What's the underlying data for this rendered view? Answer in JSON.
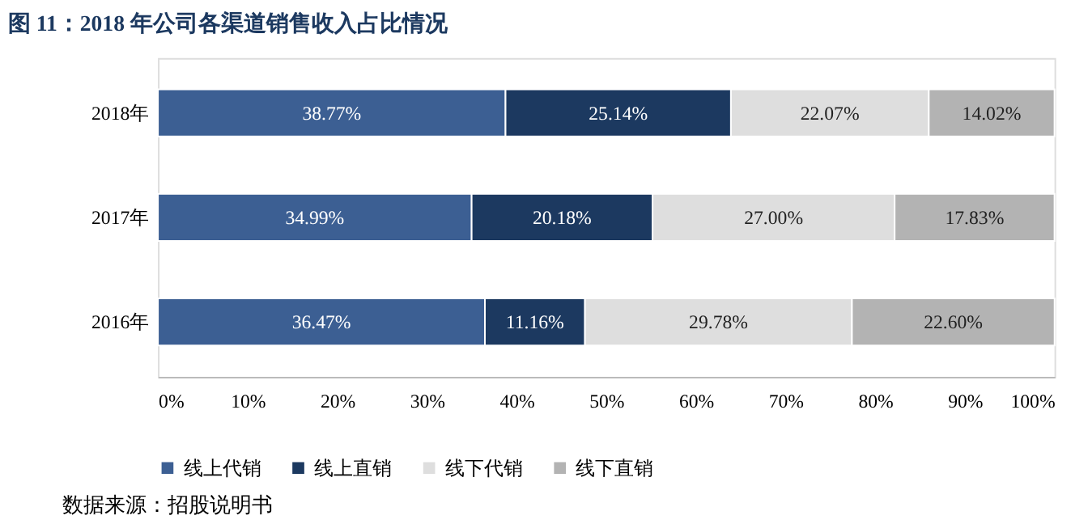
{
  "chart_data": {
    "type": "bar",
    "orientation": "horizontal",
    "stacked": true,
    "title": "图 11：2018 年公司各渠道销售收入占比情况",
    "categories": [
      "2018年",
      "2017年",
      "2016年"
    ],
    "series": [
      {
        "name": "线上代销",
        "color": "#3c5f93",
        "values": [
          38.77,
          34.99,
          36.47
        ],
        "value_labels": [
          "38.77%",
          "34.99%",
          "36.47%"
        ]
      },
      {
        "name": "线上直销",
        "color": "#1c3960",
        "values": [
          25.14,
          20.18,
          11.16
        ],
        "value_labels": [
          "25.14%",
          "20.18%",
          "11.16%"
        ]
      },
      {
        "name": "线下代销",
        "color": "#dedede",
        "values": [
          22.07,
          27.0,
          29.78
        ],
        "value_labels": [
          "22.07%",
          "27.00%",
          "29.78%"
        ]
      },
      {
        "name": "线下直销",
        "color": "#b3b3b3",
        "values": [
          14.02,
          17.83,
          22.6
        ],
        "value_labels": [
          "14.02%",
          "17.83%",
          "22.60%"
        ]
      }
    ],
    "xlim": [
      0,
      100
    ],
    "xticks": [
      {
        "value": 0,
        "label": "0%"
      },
      {
        "value": 10,
        "label": "10%"
      },
      {
        "value": 20,
        "label": "20%"
      },
      {
        "value": 30,
        "label": "30%"
      },
      {
        "value": 40,
        "label": "40%"
      },
      {
        "value": 50,
        "label": "50%"
      },
      {
        "value": 60,
        "label": "60%"
      },
      {
        "value": 70,
        "label": "70%"
      },
      {
        "value": 80,
        "label": "80%"
      },
      {
        "value": 90,
        "label": "90%"
      },
      {
        "value": 100,
        "label": "100%"
      }
    ],
    "legend": "bottom",
    "grid": false,
    "annotations": [
      "数据来源：招股说明书"
    ]
  }
}
